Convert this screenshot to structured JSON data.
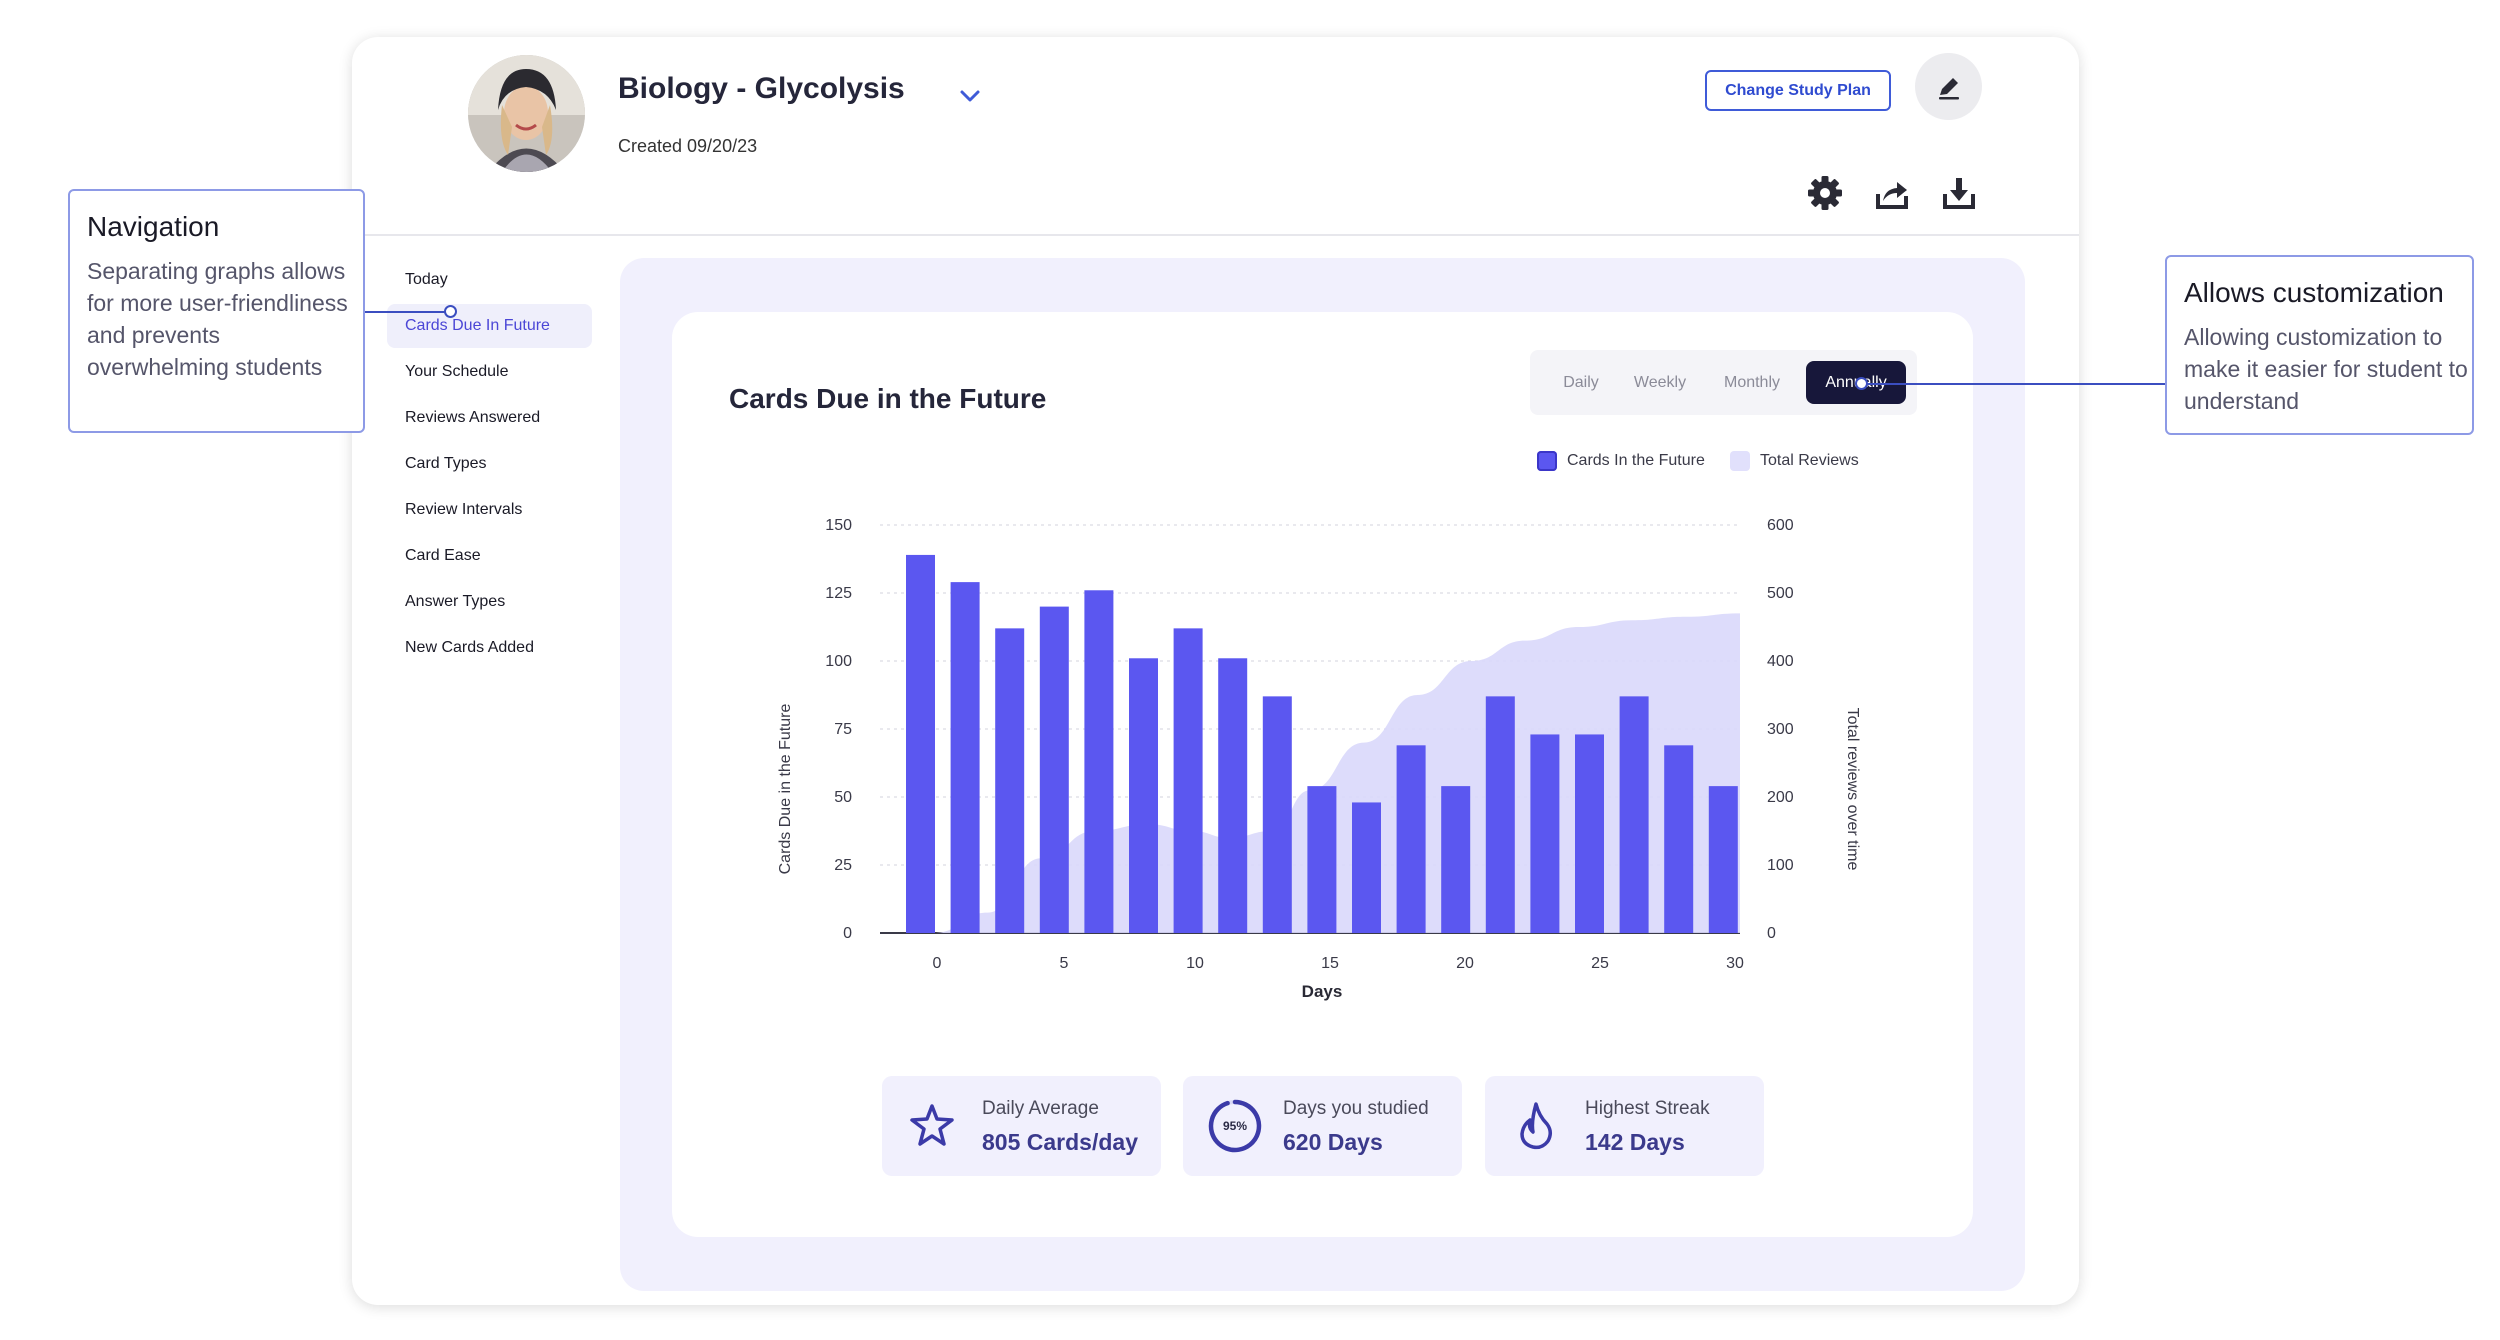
{
  "header": {
    "deck_title": "Biology - Glycolysis",
    "created": "Created 09/20/23",
    "change_plan_label": "Change Study Plan"
  },
  "icons": [
    "avatar",
    "chevron-down-icon",
    "pencil-icon",
    "gear-icon",
    "share-icon",
    "download-icon",
    "star-icon",
    "progress-ring-icon",
    "flame-icon"
  ],
  "sidebar": {
    "items": [
      {
        "label": "Today"
      },
      {
        "label": "Cards Due In Future",
        "active": true
      },
      {
        "label": "Your Schedule"
      },
      {
        "label": "Reviews Answered"
      },
      {
        "label": "Card Types"
      },
      {
        "label": "Review Intervals"
      },
      {
        "label": "Card Ease"
      },
      {
        "label": "Answer Types"
      },
      {
        "label": "New Cards Added"
      }
    ]
  },
  "range_selector": {
    "options": [
      "Daily",
      "Weekly",
      "Monthly",
      "Annually"
    ],
    "selected": "Annually"
  },
  "legend": {
    "cards": "Cards In the Future",
    "reviews": "Total Reviews"
  },
  "colors": {
    "bar": "#5b57f0",
    "area": "#d9d8fb",
    "accent": "#3f5bd8",
    "dark": "#17173a",
    "panel": "#f1f0fd"
  },
  "chart_data": {
    "type": "bar",
    "title": "Cards Due in the Future",
    "xlabel": "Days",
    "ylabel": "Cards Due in the Future",
    "y2label": "Total reviews over time",
    "xlim": [
      -2,
      30
    ],
    "ylim": [
      0,
      150
    ],
    "y2lim": [
      0,
      600
    ],
    "x_ticks": [
      0,
      5,
      10,
      15,
      20,
      25,
      30
    ],
    "y_ticks": [
      0,
      25,
      50,
      75,
      100,
      125,
      150
    ],
    "y2_ticks": [
      0,
      100,
      200,
      300,
      400,
      500,
      600
    ],
    "grid": true,
    "series": [
      {
        "name": "Cards In the Future",
        "type": "bar",
        "axis": "left",
        "x": [
          0,
          1,
          2,
          3,
          4,
          5,
          6,
          7,
          8,
          9,
          10,
          11,
          12,
          13,
          14,
          15,
          16,
          17,
          18,
          19
        ],
        "values": [
          139,
          129,
          112,
          120,
          126,
          101,
          112,
          101,
          87,
          54,
          48,
          69,
          54,
          87,
          73,
          73,
          87,
          69,
          54,
          0
        ]
      },
      {
        "name": "Total Reviews",
        "type": "area",
        "axis": "right",
        "x": [
          0,
          2,
          4,
          6,
          8,
          9.6,
          11,
          12.6,
          14,
          16,
          18,
          20,
          22,
          24,
          26,
          28,
          30
        ],
        "values": [
          0,
          30,
          110,
          150,
          160,
          150,
          140,
          150,
          210,
          280,
          350,
          400,
          430,
          450,
          460,
          465,
          470
        ]
      }
    ]
  },
  "stats": [
    {
      "label": "Daily Average",
      "value": "805 Cards/day"
    },
    {
      "label": "Days you studied",
      "value": "620 Days",
      "ring_text": "95%"
    },
    {
      "label": "Highest Streak",
      "value": "142 Days"
    }
  ],
  "annotations": {
    "navigation": {
      "title": "Navigation",
      "body": "Separating graphs allows for more user-friendliness and prevents overwhelming students"
    },
    "customization": {
      "title": "Allows customization",
      "body": "Allowing customization to make it easier for student to understand"
    }
  }
}
